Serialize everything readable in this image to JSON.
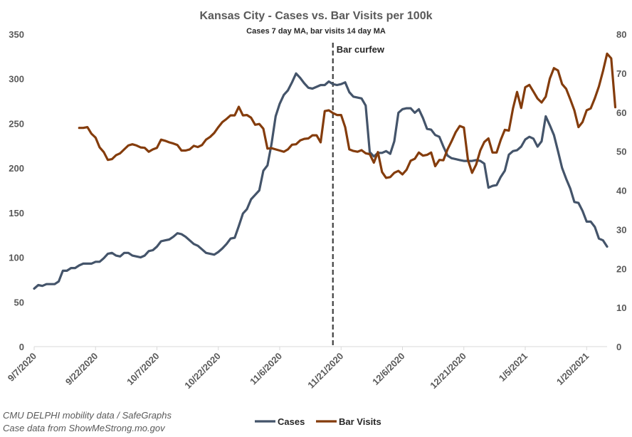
{
  "chart_data": {
    "type": "line",
    "title": "Kansas City - Cases vs. Bar Visits per 100k",
    "subtitle": "Cases 7 day MA, bar visits 14 day MA",
    "x_start": "9/7/2020",
    "x_end": "1/25/2021",
    "x_tick_labels": [
      "9/7/2020",
      "9/22/2020",
      "10/7/2020",
      "10/22/2020",
      "11/6/2020",
      "11/21/2020",
      "12/6/2020",
      "12/21/2020",
      "1/5/2021",
      "1/20/2021"
    ],
    "y_left": {
      "min": 0,
      "max": 350,
      "ticks": [
        0,
        50,
        100,
        150,
        200,
        250,
        300,
        350
      ]
    },
    "y_right": {
      "min": 0,
      "max": 80,
      "ticks": [
        0,
        10,
        20,
        30,
        40,
        50,
        60,
        70,
        80
      ]
    },
    "grid": false,
    "legend_position": "bottom",
    "annotation": {
      "label": "Bar curfew",
      "date": "11/19/2020",
      "style": "dashed-vertical"
    },
    "series": [
      {
        "name": "Cases",
        "axis": "left",
        "color": "#44546A",
        "start": "9/7/2020",
        "values": [
          65,
          69,
          68,
          70,
          70,
          70,
          73,
          85,
          85,
          88,
          88,
          91,
          93,
          93,
          93,
          95,
          95,
          99,
          104,
          105,
          102,
          101,
          105,
          105,
          102,
          101,
          100,
          102,
          107,
          108,
          112,
          118,
          119,
          120,
          123,
          127,
          126,
          123,
          119,
          115,
          113,
          109,
          105,
          104,
          103,
          106,
          110,
          115,
          121,
          122,
          135,
          149,
          154,
          165,
          170,
          175,
          197,
          203,
          227,
          258,
          272,
          282,
          287,
          296,
          306,
          301,
          295,
          290,
          289,
          291,
          293,
          293,
          297,
          294,
          293,
          294,
          296,
          285,
          280,
          279,
          278,
          270,
          218,
          213,
          217,
          217,
          219,
          216,
          230,
          262,
          266,
          267,
          267,
          262,
          266,
          256,
          244,
          243,
          237,
          235,
          224,
          214,
          211,
          210,
          209,
          208,
          208,
          208,
          209,
          208,
          205,
          178,
          180,
          181,
          190,
          197,
          215,
          219,
          220,
          224,
          232,
          235,
          233,
          224,
          230,
          258,
          248,
          237,
          219,
          200,
          188,
          177,
          162,
          161,
          152,
          140,
          140,
          134,
          121,
          119,
          112
        ]
      },
      {
        "name": "Bar Visits",
        "axis": "right",
        "color": "#843C0C",
        "start": "9/18/2020",
        "values": [
          56,
          56,
          56.2,
          54.5,
          53.5,
          51,
          49.8,
          47.8,
          48,
          49,
          49.5,
          50.5,
          51.5,
          51.8,
          51.5,
          51,
          50.9,
          49.9,
          50.5,
          50.9,
          53,
          52.7,
          52.3,
          52,
          51.6,
          50.2,
          50.2,
          50.5,
          51.4,
          51.1,
          51.6,
          53,
          53.7,
          54.7,
          56.2,
          57.5,
          58.3,
          59.2,
          59.2,
          61.4,
          59.2,
          59.3,
          58.6,
          56.8,
          57,
          55.8,
          50.7,
          50.8,
          50.5,
          50.2,
          49.9,
          50.5,
          51.7,
          51.8,
          52.8,
          53.2,
          53.3,
          54.1,
          54.1,
          52.3,
          60.3,
          60.5,
          59.8,
          59.3,
          59.3,
          56.2,
          50.5,
          50.1,
          49.9,
          50.3,
          49.5,
          49.3,
          47.1,
          49.8,
          44.7,
          43.2,
          43.4,
          44.5,
          45,
          44.1,
          45.3,
          47.6,
          48.1,
          49.7,
          48.9,
          49.1,
          49.7,
          46.2,
          47.8,
          47.7,
          50.5,
          52.6,
          54.9,
          56.5,
          56.1,
          47.8,
          44.5,
          46.6,
          50.2,
          52.4,
          53.3,
          49.7,
          49.7,
          52.9,
          55.5,
          55.3,
          61,
          65.2,
          61.1,
          66.4,
          67,
          65.3,
          63.5,
          62.5,
          64,
          68.6,
          71.3,
          70.7,
          67.2,
          66,
          63.3,
          60.5,
          56.2,
          57.5,
          60.5,
          61,
          63.6,
          66.6,
          70.6,
          75,
          73.8,
          61.3
        ]
      }
    ]
  },
  "source": {
    "line1": "CMU DELPHI mobility data / SafeGraphs",
    "line2": "Case data from ShowMeStrong.mo.gov"
  }
}
